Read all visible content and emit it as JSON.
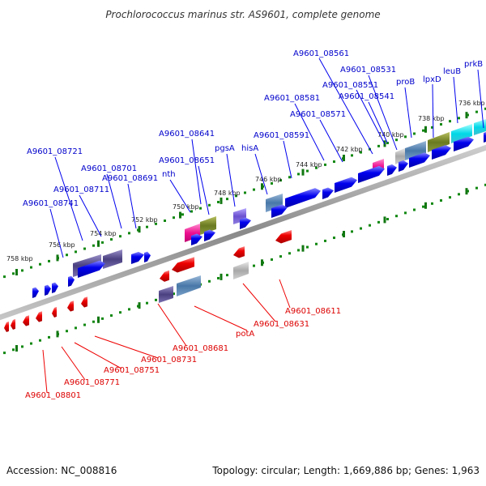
{
  "title": "Prochlorococcus marinus str. AS9601, complete genome",
  "accession": "Accession: NC_008816",
  "topology": "Topology: circular; Length: 1,669,886 bp; Genes: 1,963",
  "colors": {
    "forward": "#0000ee",
    "reverse": "#ee0000",
    "dots": "#118811",
    "backbone": "#9a9a9a"
  },
  "scale_labels": [
    "736 kbp",
    "738 kbp",
    "740 kbp",
    "742 kbp",
    "744 kbp",
    "746 kbp",
    "748 kbp",
    "750 kbp",
    "752 kbp",
    "754 kbp",
    "756 kbp",
    "758 kbp"
  ],
  "forward_labels": [
    "A9601_08561",
    "A9601_08531",
    "prkB",
    "leuB",
    "lpxD",
    "proB",
    "A9601_08551",
    "A9601_08541",
    "A9601_08581",
    "A9601_08571",
    "A9601_08591",
    "A9601_08641",
    "hisA",
    "pgsA",
    "A9601_08651",
    "nth",
    "A9601_08721",
    "A9601_08701",
    "A9601_08691",
    "A9601_08711",
    "A9601_08741"
  ],
  "reverse_labels": [
    "A9601_08611",
    "A9601_08631",
    "potA",
    "A9601_08681",
    "A9601_08731",
    "A9601_08751",
    "A9601_08771",
    "A9601_08801"
  ]
}
